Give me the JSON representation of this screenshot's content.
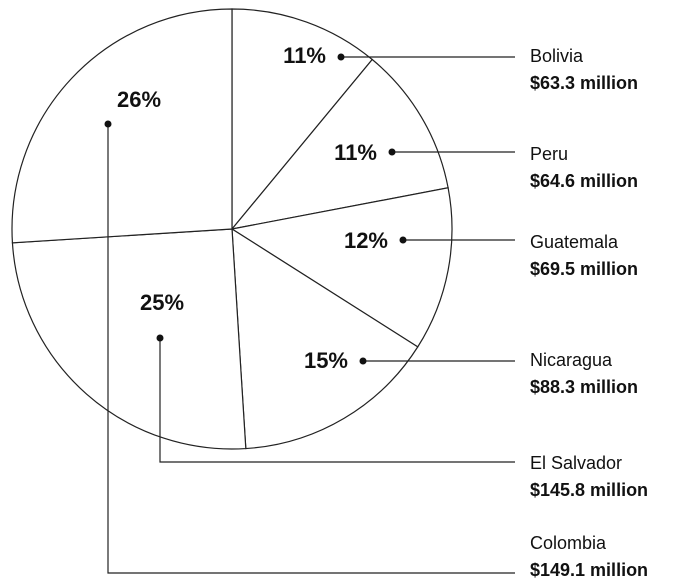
{
  "chart_data": {
    "type": "pie",
    "categories": [
      "Bolivia",
      "Peru",
      "Guatemala",
      "Nicaragua",
      "El Salvador",
      "Colombia"
    ],
    "values": [
      11,
      11,
      12,
      15,
      25,
      26
    ],
    "value_labels": [
      "11%",
      "11%",
      "12%",
      "15%",
      "25%",
      "26%"
    ],
    "amounts": [
      63.3,
      64.6,
      69.5,
      88.3,
      145.8,
      149.1
    ],
    "amount_labels": [
      "$63.3 million",
      "$64.6 million",
      "$69.5 million",
      "$88.3 million",
      "$145.8 million",
      "$149.1 million"
    ],
    "color": "#ffffff"
  }
}
